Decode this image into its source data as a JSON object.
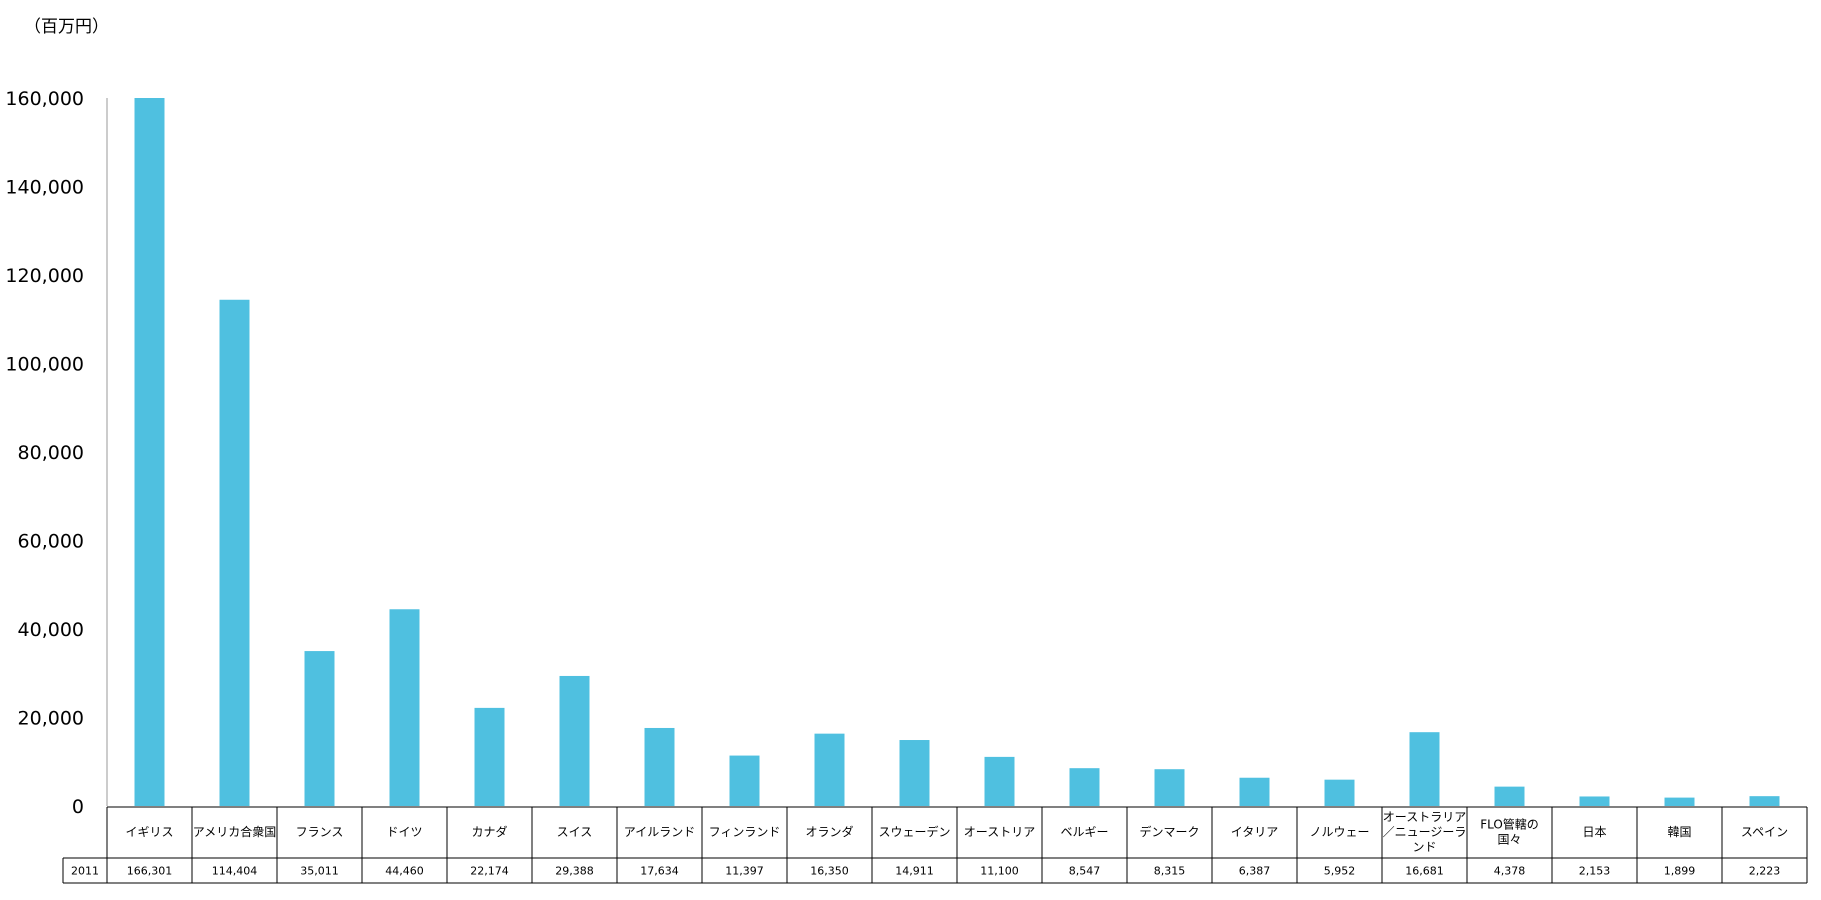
{
  "unit_label": "（百万円）",
  "chart_data": {
    "type": "bar",
    "title": "",
    "xlabel": "",
    "ylabel": "",
    "unit": "（百万円）",
    "ylim": [
      0,
      160000
    ],
    "yticks": [
      "0",
      "20,000",
      "40,000",
      "60,000",
      "80,000",
      "100,000",
      "120,000",
      "140,000",
      "160,000"
    ],
    "ytick_values": [
      0,
      20000,
      40000,
      60000,
      80000,
      100000,
      120000,
      140000,
      160000
    ],
    "categories": [
      [
        "イギリス"
      ],
      [
        "アメリカ合衆国"
      ],
      [
        "フランス"
      ],
      [
        "ドイツ"
      ],
      [
        "カナダ"
      ],
      [
        "スイス"
      ],
      [
        "アイルランド"
      ],
      [
        "フィンランド"
      ],
      [
        "オランダ"
      ],
      [
        "スウェーデン"
      ],
      [
        "オーストリア"
      ],
      [
        "ベルギー"
      ],
      [
        "デンマーク"
      ],
      [
        "イタリア"
      ],
      [
        "ノルウェー"
      ],
      [
        "オーストラリア",
        "／ニュージーラ",
        "ンド"
      ],
      [
        "FLO管轄の",
        "国々"
      ],
      [
        "日本"
      ],
      [
        "韓国"
      ],
      [
        "スペイン"
      ]
    ],
    "series": [
      {
        "name": "2011",
        "color": "#4fc0e0",
        "values": [
          166301,
          114404,
          35011,
          44460,
          22174,
          29388,
          17634,
          11397,
          16350,
          14911,
          11100,
          8547,
          8315,
          6387,
          5952,
          16681,
          4378,
          2153,
          1899,
          2223
        ],
        "labels": [
          "166,301",
          "114,404",
          "35,011",
          "44,460",
          "22,174",
          "29,388",
          "17,634",
          "11,397",
          "16,350",
          "14,911",
          "11,100",
          "8,547",
          "8,315",
          "6,387",
          "5,952",
          "16,681",
          "4,378",
          "2,153",
          "1,899",
          "2,223"
        ]
      }
    ],
    "grid": false,
    "legend": "table-bottom"
  }
}
